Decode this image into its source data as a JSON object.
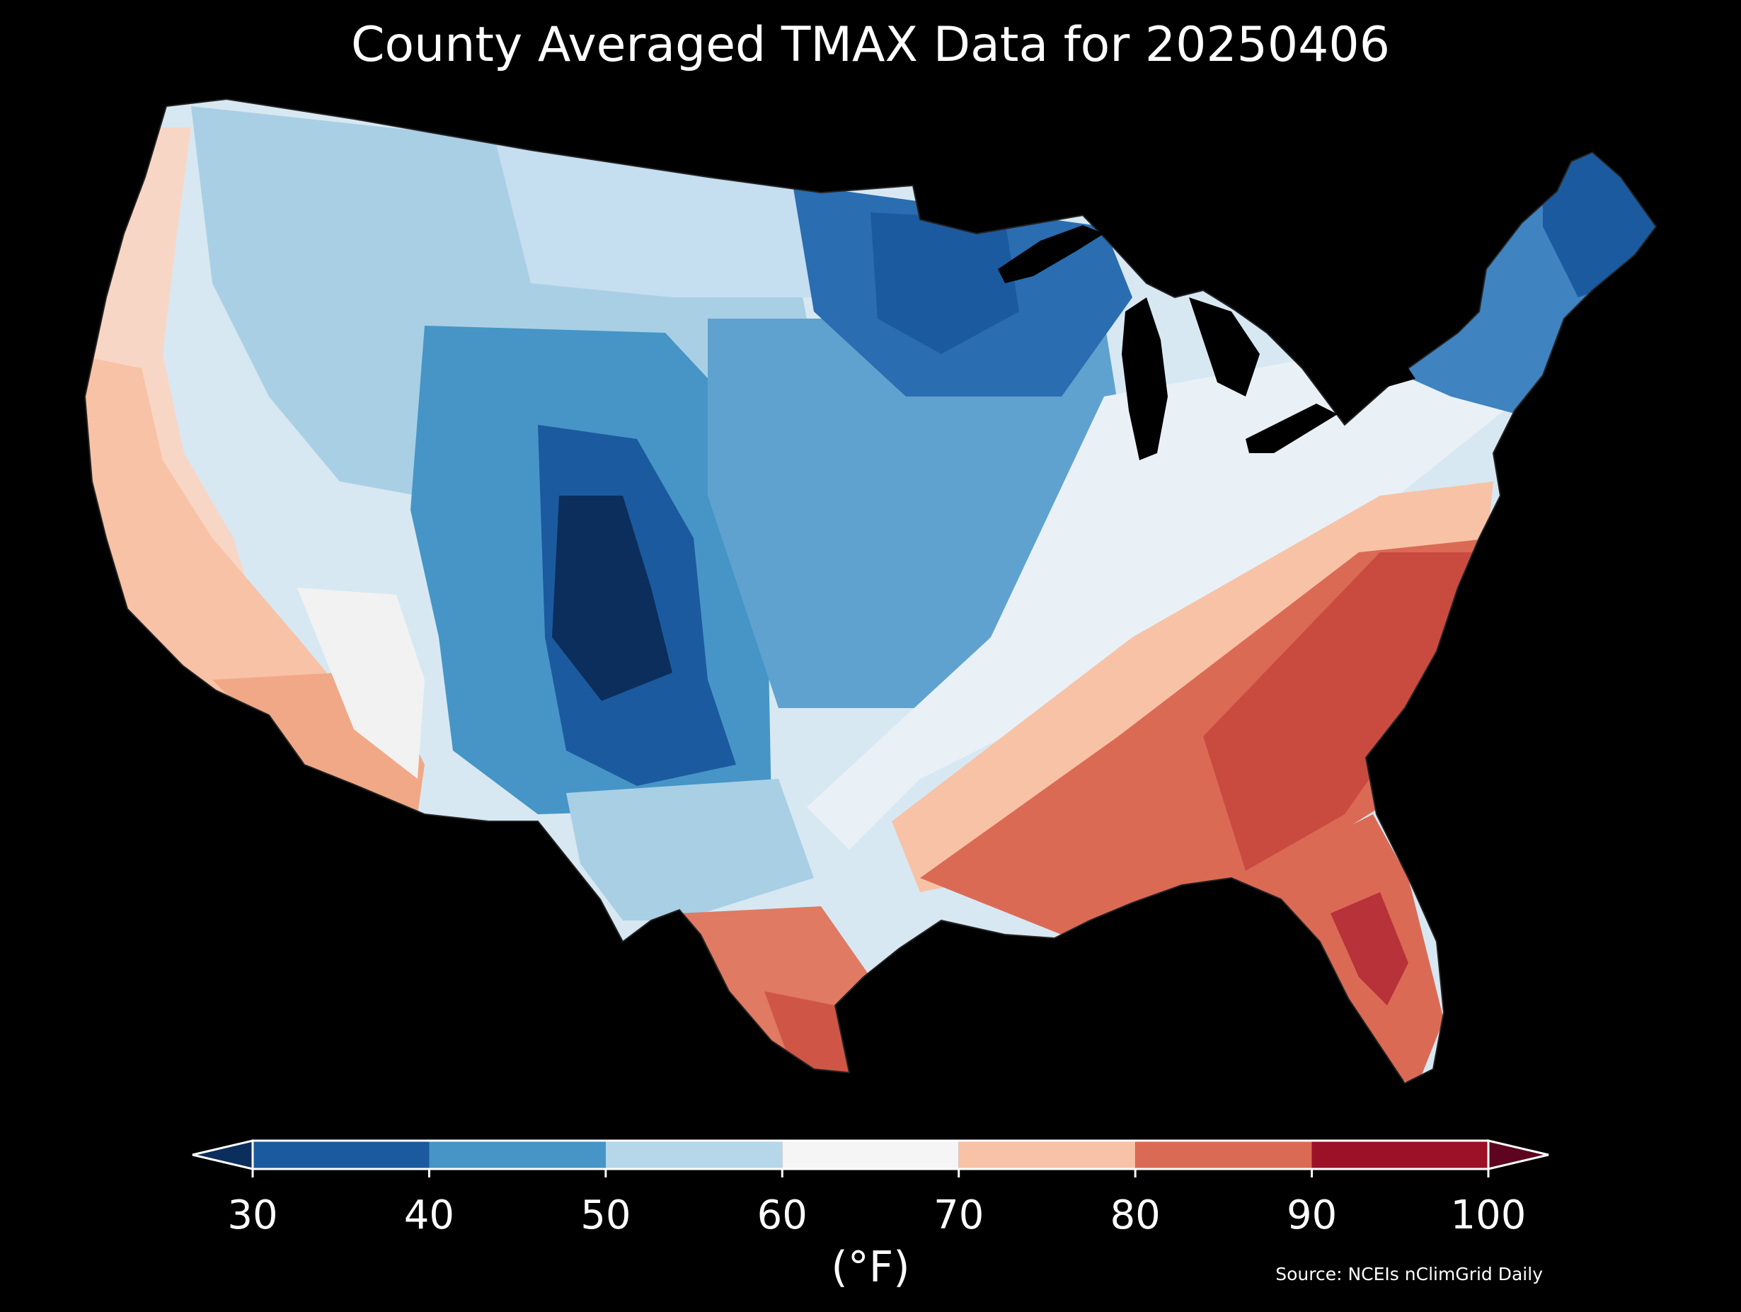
{
  "title": "County Averaged TMAX Data for 20250406",
  "source": "Source: NCEIs nClimGrid Daily",
  "colorbar": {
    "unit_label": "(°F)",
    "ticks": [
      "30",
      "40",
      "50",
      "60",
      "70",
      "80",
      "90",
      "100"
    ],
    "bins": [
      {
        "range": [
          30,
          40
        ],
        "color": "#1c5a9f"
      },
      {
        "range": [
          40,
          50
        ],
        "color": "#4695c6"
      },
      {
        "range": [
          50,
          60
        ],
        "color": "#b5d7e9"
      },
      {
        "range": [
          60,
          70
        ],
        "color": "#f5f5f5"
      },
      {
        "range": [
          70,
          80
        ],
        "color": "#f8c2a6"
      },
      {
        "range": [
          80,
          90
        ],
        "color": "#db6a55"
      },
      {
        "range": [
          90,
          100
        ],
        "color": "#9c1028"
      }
    ],
    "under_color": "#0b2e5c",
    "over_color": "#5e0420",
    "extend": "both"
  },
  "map_regions": [
    {
      "name": "pacific-coast",
      "tmax_bin": "70-80",
      "color": "#f8c2a6"
    },
    {
      "name": "great-basin",
      "tmax_bin": "50-60",
      "color": "#d7e8f2"
    },
    {
      "name": "northern-rockies",
      "tmax_bin": "50-60",
      "color": "#a9cfe5"
    },
    {
      "name": "central-rockies",
      "tmax_bin": "40-50",
      "color": "#4695c6"
    },
    {
      "name": "colorado-core",
      "tmax_bin": "below-30",
      "color": "#0b2e5c"
    },
    {
      "name": "southern-rockies",
      "tmax_bin": "30-40",
      "color": "#1c5a9f"
    },
    {
      "name": "desert-southwest",
      "tmax_bin": "70-80",
      "color": "#f1a887"
    },
    {
      "name": "northern-plains",
      "tmax_bin": "50-60",
      "color": "#b5d7e9"
    },
    {
      "name": "central-plains",
      "tmax_bin": "40-50",
      "color": "#5fa2cf"
    },
    {
      "name": "upper-midwest",
      "tmax_bin": "30-40",
      "color": "#2a6db0"
    },
    {
      "name": "ohio-valley",
      "tmax_bin": "60-70",
      "color": "#e9f1f7"
    },
    {
      "name": "northeast",
      "tmax_bin": "40-50",
      "color": "#3f83c0"
    },
    {
      "name": "maine",
      "tmax_bin": "30-40",
      "color": "#1c5a9f"
    },
    {
      "name": "texas-south",
      "tmax_bin": "80-90",
      "color": "#db6a55"
    },
    {
      "name": "gulf-coast",
      "tmax_bin": "80-90",
      "color": "#e07a62"
    },
    {
      "name": "southeast",
      "tmax_bin": "80-90",
      "color": "#cf5646"
    },
    {
      "name": "florida",
      "tmax_bin": "90-100",
      "color": "#b8323a"
    },
    {
      "name": "great-lakes",
      "tmax_bin": "water",
      "color": "#000000"
    }
  ]
}
